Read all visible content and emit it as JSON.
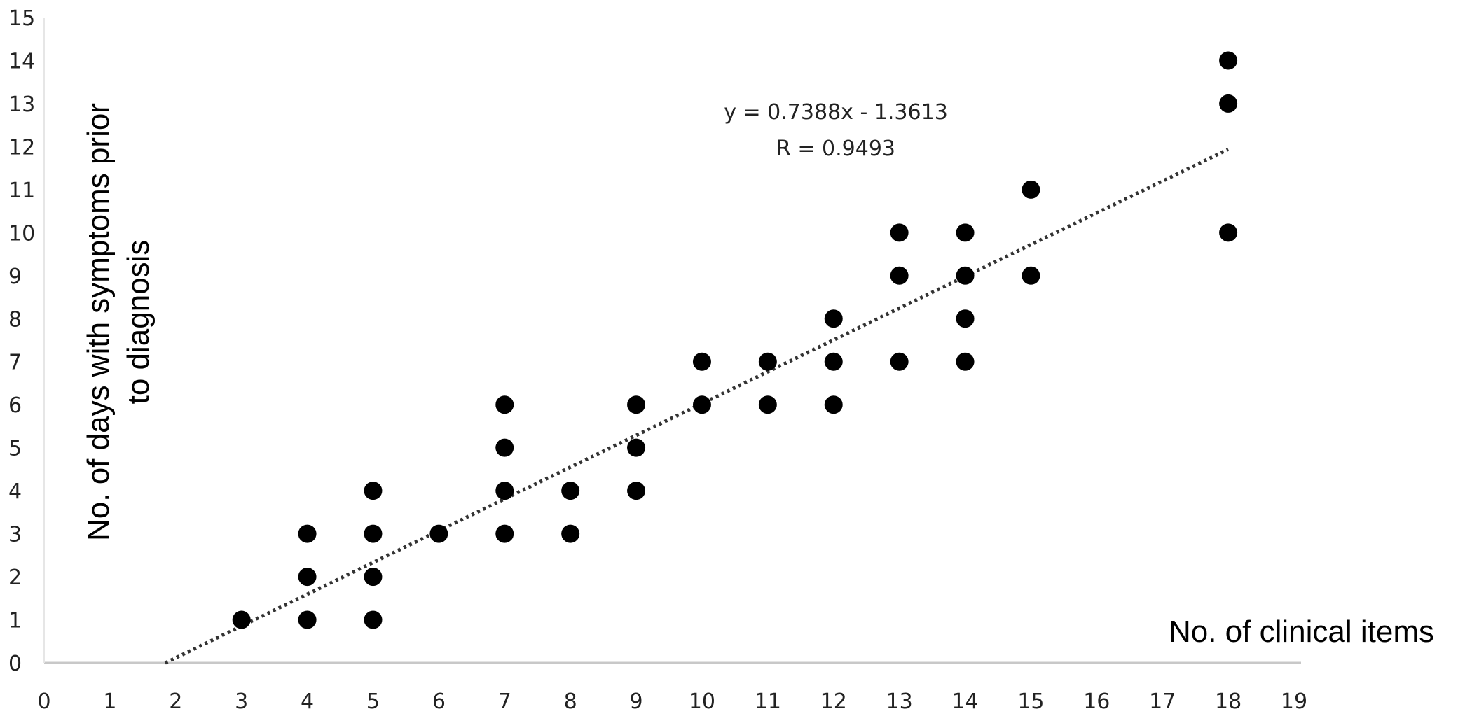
{
  "chart_data": {
    "type": "scatter",
    "title": "",
    "xlabel": "No. of clinical items",
    "ylabel": "No. of days with symptoms prior to diagnosis",
    "ylabel_lines": [
      "No. of days with symptoms prior",
      "to diagnosis"
    ],
    "xlim": [
      0,
      19
    ],
    "ylim": [
      0,
      15
    ],
    "x_ticks": [
      0,
      1,
      2,
      3,
      4,
      5,
      6,
      7,
      8,
      9,
      10,
      11,
      12,
      13,
      14,
      15,
      16,
      17,
      18,
      19
    ],
    "y_ticks": [
      0,
      1,
      2,
      3,
      4,
      5,
      6,
      7,
      8,
      9,
      10,
      11,
      12,
      13,
      14,
      15
    ],
    "grid": false,
    "series": [
      {
        "points": [
          [
            3,
            1
          ],
          [
            4,
            1
          ],
          [
            4,
            2
          ],
          [
            4,
            3
          ],
          [
            5,
            1
          ],
          [
            5,
            2
          ],
          [
            5,
            3
          ],
          [
            5,
            4
          ],
          [
            6,
            3
          ],
          [
            7,
            3
          ],
          [
            7,
            4
          ],
          [
            7,
            5
          ],
          [
            7,
            6
          ],
          [
            8,
            3
          ],
          [
            8,
            4
          ],
          [
            9,
            4
          ],
          [
            9,
            5
          ],
          [
            9,
            6
          ],
          [
            10,
            6
          ],
          [
            10,
            7
          ],
          [
            11,
            6
          ],
          [
            11,
            7
          ],
          [
            12,
            6
          ],
          [
            12,
            7
          ],
          [
            12,
            8
          ],
          [
            13,
            7
          ],
          [
            13,
            9
          ],
          [
            13,
            10
          ],
          [
            14,
            7
          ],
          [
            14,
            8
          ],
          [
            14,
            9
          ],
          [
            14,
            10
          ],
          [
            15,
            9
          ],
          [
            15,
            11
          ],
          [
            18,
            10
          ],
          [
            18,
            13
          ],
          [
            18,
            14
          ]
        ],
        "color": "#000000"
      }
    ],
    "trendline": {
      "style": "dotted",
      "slope": 0.7388,
      "intercept": -1.3613,
      "x_range": [
        1.84,
        18
      ],
      "color": "#333333"
    },
    "annotations": {
      "equation": "y = 0.7388x - 1.3613",
      "r_value": "R = 0.9493"
    }
  }
}
